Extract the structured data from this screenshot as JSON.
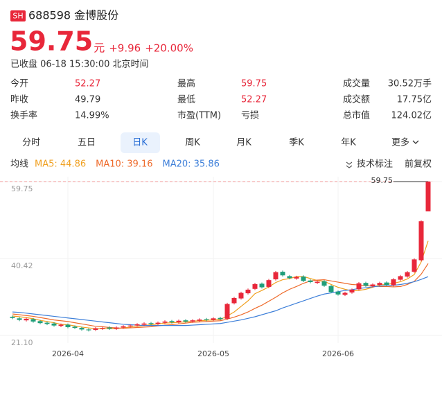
{
  "header": {
    "market": "SH",
    "code_name": "688598 金博股份",
    "price": "59.75",
    "unit": "元",
    "change": "+9.96",
    "change_pct": "+20.00%",
    "status": "已收盘 06-18 15:30:00 北京时间"
  },
  "stats": [
    {
      "label": "今开",
      "value": "52.27",
      "color": "#e8273a"
    },
    {
      "label": "昨收",
      "value": "49.79",
      "color": "#333333"
    },
    {
      "label": "换手率",
      "value": "14.99%",
      "color": "#333333"
    },
    {
      "label": "最高",
      "value": "59.75",
      "color": "#e8273a"
    },
    {
      "label": "最低",
      "value": "52.27",
      "color": "#e8273a"
    },
    {
      "label": "市盈(TTM)",
      "value": "亏损",
      "color": "#333333"
    },
    {
      "label": "成交量",
      "value": "30.52万手",
      "color": "#333333"
    },
    {
      "label": "成交额",
      "value": "17.75亿",
      "color": "#333333"
    },
    {
      "label": "总市值",
      "value": "124.02亿",
      "color": "#333333"
    }
  ],
  "tabs": [
    "分时",
    "五日",
    "日K",
    "周K",
    "月K",
    "季K",
    "年K",
    "更多"
  ],
  "active_tab": 2,
  "indicators": {
    "label": "均线",
    "mark": "技术标注",
    "adjust": "前复权"
  },
  "chart_data": {
    "type": "candlestick",
    "categories": [
      null,
      null,
      null,
      null,
      null,
      null,
      null,
      null,
      "2026-04",
      null,
      null,
      null,
      null,
      null,
      null,
      null,
      null,
      null,
      null,
      null,
      null,
      null,
      null,
      null,
      null,
      null,
      null,
      null,
      null,
      "2026-05",
      null,
      null,
      null,
      null,
      null,
      null,
      null,
      null,
      null,
      null,
      null,
      null,
      null,
      null,
      null,
      null,
      null,
      "2026-06",
      null,
      null,
      null,
      null,
      null,
      null,
      null,
      null,
      null,
      null,
      null,
      null,
      null
    ],
    "open": [
      25.8,
      25.4,
      24.9,
      25.2,
      24.7,
      24.3,
      24.1,
      23.5,
      23.8,
      23.3,
      23.0,
      22.6,
      22.5,
      22.8,
      23.1,
      22.8,
      23.1,
      23.4,
      23.6,
      23.8,
      24.2,
      24.0,
      24.3,
      24.7,
      24.4,
      24.9,
      24.6,
      24.8,
      25.2,
      25.0,
      25.5,
      25.3,
      29.2,
      30.4,
      31.7,
      32.8,
      34.1,
      33.3,
      35.2,
      37.1,
      36.0,
      35.4,
      35.9,
      34.9,
      34.3,
      34.7,
      33.5,
      32.1,
      31.3,
      31.9,
      32.7,
      34.3,
      33.5,
      33.8,
      34.4,
      33.7,
      35.1,
      35.9,
      37.1,
      40.0,
      52.27
    ],
    "high": [
      26.1,
      25.7,
      25.6,
      25.5,
      25.0,
      24.6,
      24.4,
      24.1,
      24.1,
      23.6,
      23.3,
      22.9,
      23.2,
      23.3,
      23.4,
      23.4,
      23.7,
      23.9,
      24.2,
      24.4,
      24.5,
      24.6,
      24.9,
      25.0,
      25.1,
      25.2,
      25.2,
      25.4,
      25.5,
      25.7,
      25.8,
      29.3,
      30.8,
      32.1,
      32.9,
      34.3,
      34.4,
      35.3,
      37.3,
      37.4,
      36.3,
      36.1,
      36.2,
      35.2,
      34.9,
      35.0,
      33.8,
      32.4,
      32.1,
      32.9,
      34.5,
      34.6,
      34.2,
      34.6,
      34.7,
      35.5,
      36.3,
      37.3,
      40.5,
      50.0,
      59.75
    ],
    "low": [
      25.2,
      24.7,
      24.6,
      24.3,
      23.9,
      23.7,
      23.3,
      23.2,
      22.9,
      22.7,
      22.3,
      22.1,
      22.2,
      22.5,
      22.5,
      22.5,
      22.8,
      23.1,
      23.3,
      23.5,
      23.7,
      23.7,
      24.0,
      24.1,
      24.1,
      24.3,
      24.3,
      24.5,
      24.7,
      24.7,
      24.9,
      25.0,
      28.9,
      30.1,
      31.4,
      32.5,
      32.9,
      33.0,
      34.9,
      35.9,
      35.2,
      35.1,
      34.5,
      34.2,
      34.0,
      33.3,
      31.7,
      31.1,
      31.0,
      31.6,
      32.4,
      33.3,
      33.2,
      33.5,
      33.5,
      33.4,
      34.8,
      35.6,
      36.8,
      39.7,
      52.27
    ],
    "close": [
      25.5,
      25.0,
      25.3,
      24.6,
      24.2,
      24.0,
      23.6,
      23.8,
      23.2,
      23.0,
      22.6,
      22.4,
      22.9,
      23.0,
      22.8,
      23.1,
      23.4,
      23.6,
      23.9,
      24.1,
      24.0,
      24.3,
      24.6,
      24.4,
      24.8,
      24.6,
      24.9,
      25.1,
      25.0,
      25.4,
      25.2,
      29.0,
      30.5,
      31.8,
      32.6,
      34.0,
      33.2,
      35.0,
      37.0,
      36.2,
      35.5,
      35.8,
      34.8,
      34.5,
      34.6,
      33.6,
      32.0,
      31.4,
      31.8,
      32.6,
      34.2,
      33.6,
      33.9,
      34.3,
      33.8,
      35.2,
      36.0,
      37.0,
      40.2,
      49.79,
      59.75
    ],
    "up_color": "#e8273a",
    "down_color": "#1f9e7a",
    "series": [
      {
        "name": "MA5: 44.86",
        "color": "#f0a020",
        "values": [
          26.0,
          25.8,
          25.6,
          25.3,
          24.9,
          24.6,
          24.3,
          23.9,
          23.8,
          23.5,
          23.2,
          23.0,
          22.8,
          22.8,
          22.8,
          22.8,
          23.0,
          23.2,
          23.4,
          23.6,
          23.8,
          24.0,
          24.2,
          24.3,
          24.4,
          24.5,
          24.7,
          24.8,
          24.9,
          25.0,
          25.1,
          26.0,
          27.0,
          28.4,
          29.8,
          31.6,
          32.4,
          33.3,
          34.4,
          35.1,
          35.4,
          35.9,
          35.9,
          35.4,
          34.9,
          34.7,
          33.9,
          33.2,
          32.7,
          32.3,
          32.4,
          32.7,
          33.2,
          33.8,
          33.9,
          34.2,
          34.6,
          35.3,
          36.4,
          39.6,
          44.86
        ]
      },
      {
        "name": "MA10: 39.16",
        "color": "#ee6a2a",
        "values": [
          26.5,
          26.3,
          26.1,
          25.9,
          25.6,
          25.3,
          25.0,
          24.8,
          24.6,
          24.3,
          24.0,
          23.7,
          23.4,
          23.3,
          23.1,
          23.0,
          22.9,
          23.0,
          23.1,
          23.2,
          23.3,
          23.5,
          23.7,
          23.8,
          24.0,
          24.2,
          24.4,
          24.5,
          24.6,
          24.7,
          24.8,
          25.2,
          25.7,
          26.3,
          27.0,
          27.9,
          28.7,
          29.7,
          30.7,
          31.8,
          32.7,
          33.4,
          34.2,
          34.8,
          35.0,
          35.1,
          34.8,
          34.5,
          34.2,
          33.9,
          33.8,
          33.6,
          33.5,
          33.4,
          33.4,
          33.3,
          33.4,
          33.9,
          34.7,
          36.5,
          39.16
        ]
      },
      {
        "name": "MA20: 35.86",
        "color": "#3d7fd9",
        "values": [
          27.0,
          26.9,
          26.7,
          26.5,
          26.3,
          26.1,
          25.9,
          25.7,
          25.5,
          25.3,
          25.1,
          24.9,
          24.7,
          24.5,
          24.3,
          24.1,
          23.9,
          23.8,
          23.7,
          23.6,
          23.6,
          23.6,
          23.6,
          23.6,
          23.6,
          23.6,
          23.7,
          23.8,
          23.9,
          24.0,
          24.1,
          24.4,
          24.7,
          25.0,
          25.4,
          25.8,
          26.3,
          26.8,
          27.3,
          28.0,
          28.6,
          29.2,
          29.8,
          30.4,
          31.0,
          31.5,
          31.8,
          32.1,
          32.4,
          32.6,
          32.9,
          33.1,
          33.3,
          33.5,
          33.6,
          33.7,
          33.9,
          34.2,
          34.6,
          35.2,
          35.86
        ]
      }
    ],
    "ylim": [
      21.1,
      59.75
    ],
    "yticks": [
      {
        "value": 21.1,
        "label": "21.10"
      },
      40.42,
      59.75
    ],
    "max_line": 59.75,
    "grid": true
  }
}
